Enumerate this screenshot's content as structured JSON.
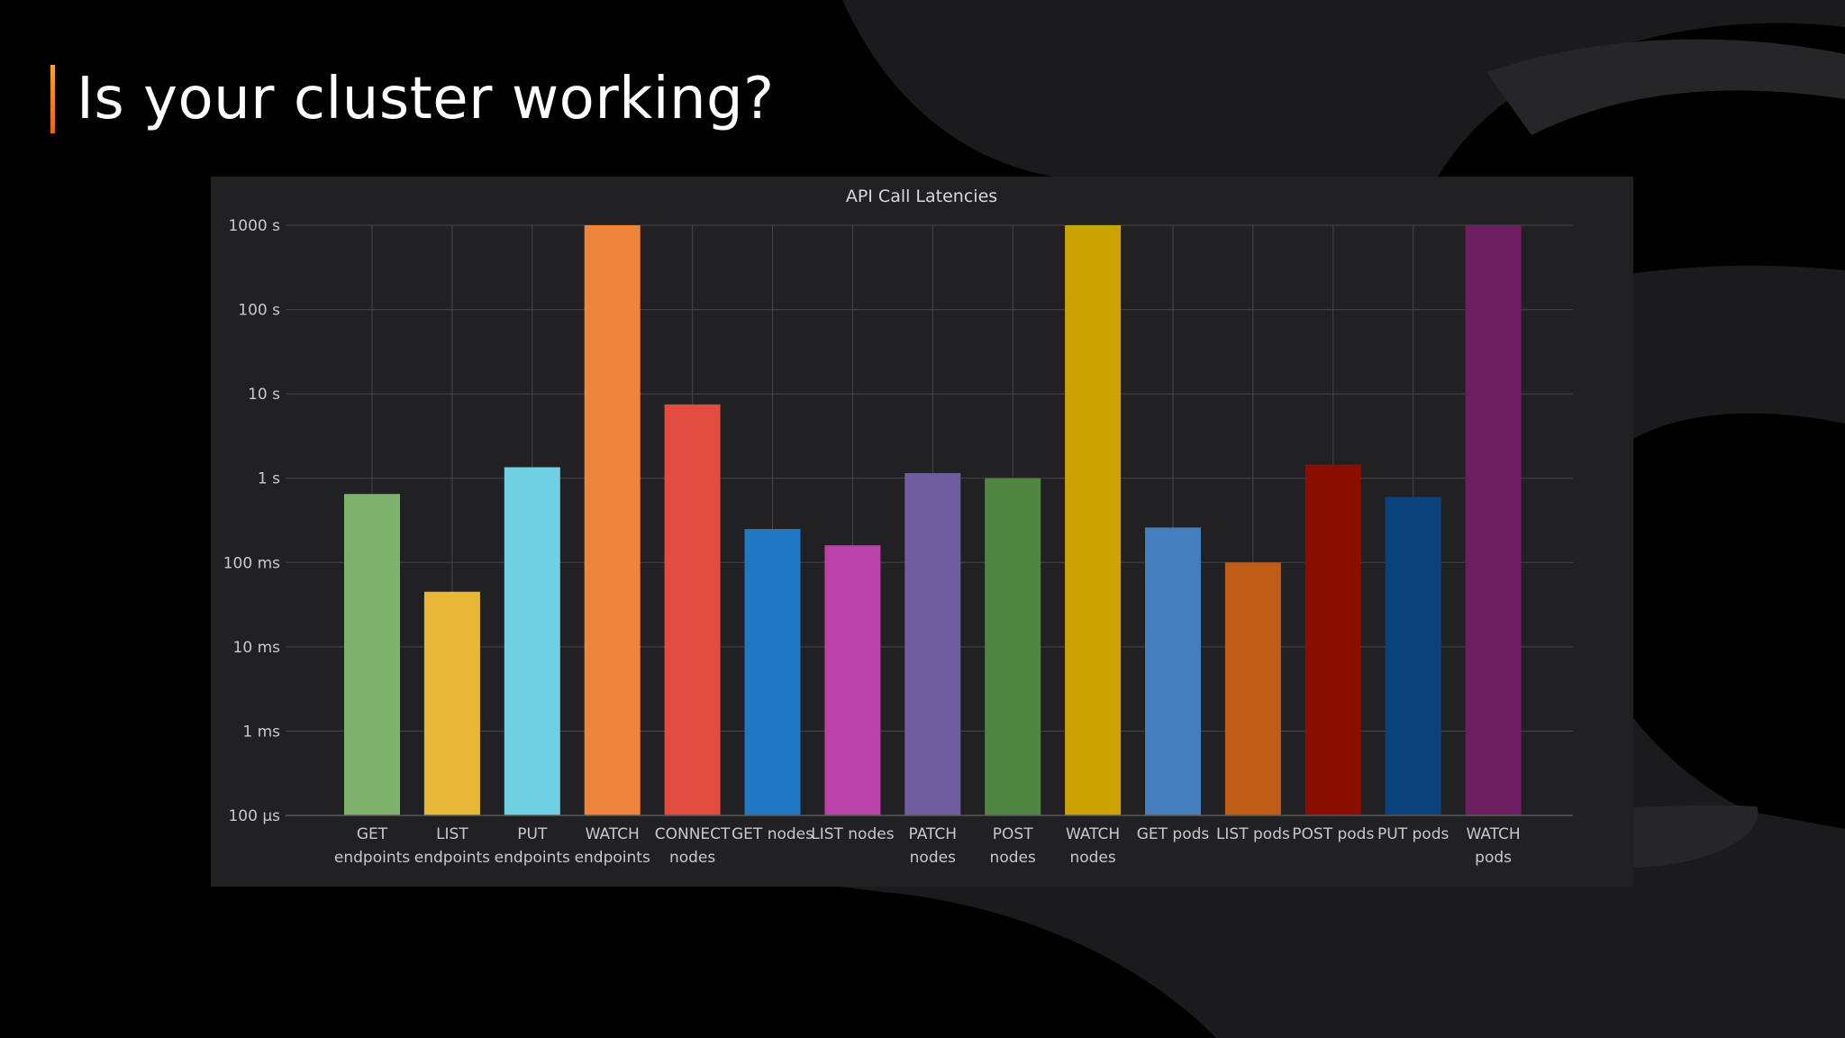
{
  "slide": {
    "title": "Is your cluster working?",
    "accent_color": "#f08a2a"
  },
  "panel": {
    "background": "#212124"
  },
  "chart_data": {
    "type": "bar",
    "title": "API Call Latencies",
    "xlabel": "",
    "ylabel": "",
    "yscale": "log",
    "ylim_seconds": [
      0.0001,
      1000
    ],
    "grid": true,
    "yticks": [
      {
        "value": 0.0001,
        "label": "100 µs"
      },
      {
        "value": 0.001,
        "label": "1 ms"
      },
      {
        "value": 0.01,
        "label": "10 ms"
      },
      {
        "value": 0.1,
        "label": "100 ms"
      },
      {
        "value": 1,
        "label": "1 s"
      },
      {
        "value": 10,
        "label": "10 s"
      },
      {
        "value": 100,
        "label": "100 s"
      },
      {
        "value": 1000,
        "label": "1000 s"
      }
    ],
    "bars": [
      {
        "label": [
          "GET",
          "endpoints"
        ],
        "value_seconds": 0.65,
        "color": "#7eb26d"
      },
      {
        "label": [
          "LIST",
          "endpoints"
        ],
        "value_seconds": 0.045,
        "color": "#eab839"
      },
      {
        "label": [
          "PUT",
          "endpoints"
        ],
        "value_seconds": 1.35,
        "color": "#6ed0e0"
      },
      {
        "label": [
          "WATCH",
          "endpoints"
        ],
        "value_seconds": 1000,
        "color": "#ef843c"
      },
      {
        "label": [
          "CONNECT",
          "nodes"
        ],
        "value_seconds": 7.5,
        "color": "#e24d42"
      },
      {
        "label": [
          "GET nodes"
        ],
        "value_seconds": 0.25,
        "color": "#1f78c1"
      },
      {
        "label": [
          "LIST nodes"
        ],
        "value_seconds": 0.16,
        "color": "#ba43a9"
      },
      {
        "label": [
          "PATCH",
          "nodes"
        ],
        "value_seconds": 1.15,
        "color": "#705da0"
      },
      {
        "label": [
          "POST",
          "nodes"
        ],
        "value_seconds": 1.0,
        "color": "#508642"
      },
      {
        "label": [
          "WATCH",
          "nodes"
        ],
        "value_seconds": 1000,
        "color": "#cca300"
      },
      {
        "label": [
          "GET pods"
        ],
        "value_seconds": 0.26,
        "color": "#447ebc"
      },
      {
        "label": [
          "LIST pods"
        ],
        "value_seconds": 0.1,
        "color": "#c15c17"
      },
      {
        "label": [
          "POST pods"
        ],
        "value_seconds": 1.45,
        "color": "#890f02"
      },
      {
        "label": [
          "PUT pods"
        ],
        "value_seconds": 0.6,
        "color": "#0a437c"
      },
      {
        "label": [
          "WATCH",
          "pods"
        ],
        "value_seconds": 1000,
        "color": "#6d1f62"
      }
    ]
  }
}
